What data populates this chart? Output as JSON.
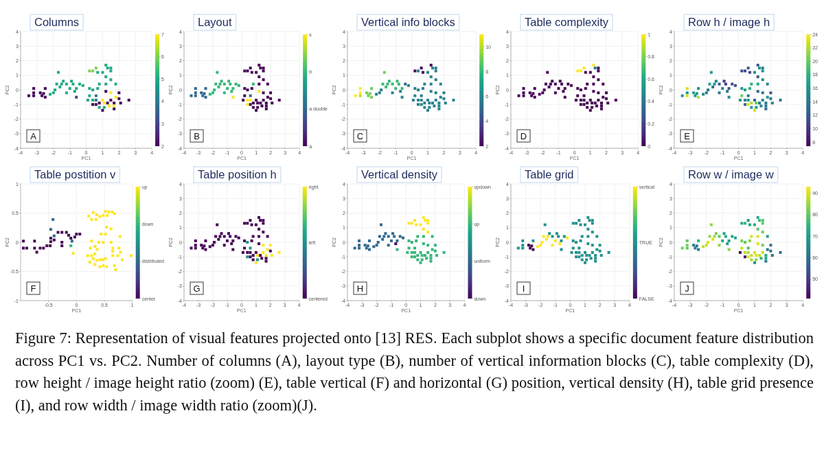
{
  "chart_data": [
    {
      "type": "scatter",
      "title": "Columns",
      "xlabel": "PC1",
      "ylabel": "PC2",
      "x": [
        -3.5,
        -3.2,
        -3.2,
        -3.2,
        -2.8,
        -2.7,
        -2.5,
        -2.5,
        -2.6,
        -2.2,
        -2.0,
        -1.9,
        -1.8,
        -1.7,
        -1.6,
        -1.5,
        -1.4,
        -1.2,
        -1.2,
        -1.0,
        -0.9,
        -0.8,
        -0.6,
        -0.6,
        -0.4,
        -0.2,
        -0.7,
        0.2,
        0.4,
        0.6,
        0.7,
        1.0,
        1.2,
        1.3,
        1.5,
        1.5,
        1.2,
        1.5,
        0.8,
        1.2,
        1.8,
        0.2,
        0.4,
        0.7,
        1.2,
        1.5,
        2.0,
        0.2,
        0.6,
        2.0,
        1.8,
        0.1,
        0.4,
        0.6,
        1.0,
        1.5,
        2.6,
        0.4,
        0.6,
        0.8,
        1.1,
        1.3,
        1.7,
        2.1,
        0.8,
        1.1,
        1.4,
        1.0,
        1.7,
        1.7
      ],
      "values": [
        -0.4,
        0.1,
        -0.2,
        -0.4,
        -0.2,
        -0.4,
        0.1,
        -0.5,
        -0.25,
        -0.3,
        -0.2,
        0.0,
        0.4,
        1.2,
        0.2,
        0.4,
        0.6,
        0.4,
        -0.2,
        0.1,
        0.6,
        0.4,
        0.1,
        -0.5,
        0.4,
        0.3,
        -0.1,
        1.3,
        1.3,
        1.5,
        1.2,
        1.2,
        1.7,
        1.5,
        1.5,
        1.3,
        0.9,
        0.7,
        0.4,
        0.4,
        0.4,
        0.1,
        0.0,
        0.1,
        -0.1,
        -0.2,
        -0.2,
        -0.4,
        -0.4,
        -0.6,
        -0.5,
        -0.7,
        -0.7,
        -0.7,
        -0.7,
        -0.7,
        -0.7,
        -1.0,
        -1.0,
        -0.9,
        -0.9,
        -0.9,
        -0.9,
        -0.9,
        -1.2,
        -1.2,
        -1.1,
        -1.4,
        -1.3,
        -1.1
      ],
      "cvalues": [
        2,
        2,
        2,
        2,
        2,
        2,
        2,
        2,
        2,
        5,
        5,
        5,
        5,
        5,
        5,
        5,
        5,
        5,
        5,
        5,
        5,
        5,
        5,
        3,
        5,
        5,
        5,
        6,
        6,
        6,
        5,
        5,
        5,
        5,
        5,
        5,
        5,
        5,
        5,
        5,
        5,
        5,
        5,
        5,
        2,
        7,
        2,
        5,
        4,
        2,
        7,
        5,
        5,
        4,
        7,
        2,
        2,
        2,
        2,
        2,
        7,
        2,
        2,
        2,
        5,
        5,
        7,
        2,
        2,
        7
      ],
      "clim": [
        2,
        7
      ],
      "cticks": [
        2,
        3,
        4,
        5,
        6,
        7
      ],
      "xlim": [
        -4,
        4
      ],
      "ylim": [
        -4,
        4
      ],
      "xticks": [
        -4,
        -3,
        -2,
        -1,
        0,
        1,
        2,
        3,
        4
      ],
      "yticks": [
        -4,
        -3,
        -2,
        -1,
        0,
        1,
        2,
        3,
        4
      ],
      "grid": true,
      "marker": "square",
      "annotations": [
        "A"
      ]
    },
    {
      "type": "scatter",
      "title": "Layout",
      "xlabel": "PC1",
      "ylabel": "PC2",
      "x": [
        -3.5,
        -3.2,
        -3.2,
        -3.2,
        -2.8,
        -2.7,
        -2.5,
        -2.5,
        -2.6,
        -2.2,
        -2.0,
        -1.9,
        -1.8,
        -1.7,
        -1.6,
        -1.5,
        -1.4,
        -1.2,
        -1.2,
        -1.0,
        -0.9,
        -0.8,
        -0.6,
        -0.6,
        -0.4,
        -0.2,
        -0.7,
        0.2,
        0.4,
        0.6,
        0.7,
        1.0,
        1.2,
        1.3,
        1.5,
        1.5,
        1.2,
        1.5,
        0.8,
        1.2,
        1.8,
        0.2,
        0.4,
        0.7,
        1.2,
        1.5,
        2.0,
        0.2,
        0.6,
        2.0,
        1.8,
        0.1,
        0.4,
        0.6,
        1.0,
        1.5,
        2.6,
        0.4,
        0.6,
        0.8,
        1.1,
        1.3,
        1.7,
        2.1,
        0.8,
        1.1,
        1.4,
        1.0,
        1.7,
        1.7
      ],
      "values": [
        -0.4,
        0.1,
        -0.2,
        -0.4,
        -0.2,
        -0.4,
        0.1,
        -0.5,
        -0.25,
        -0.3,
        -0.2,
        0.0,
        0.4,
        1.2,
        0.2,
        0.4,
        0.6,
        0.4,
        -0.2,
        0.1,
        0.6,
        0.4,
        0.1,
        -0.5,
        0.4,
        0.3,
        -0.1,
        1.3,
        1.3,
        1.5,
        1.2,
        1.2,
        1.7,
        1.5,
        1.5,
        1.3,
        0.9,
        0.7,
        0.4,
        0.4,
        0.4,
        0.1,
        0.0,
        0.1,
        -0.1,
        -0.2,
        -0.2,
        -0.4,
        -0.4,
        -0.6,
        -0.5,
        -0.7,
        -0.7,
        -0.7,
        -0.7,
        -0.7,
        -0.7,
        -1.0,
        -1.0,
        -0.9,
        -0.9,
        -0.9,
        -0.9,
        -0.9,
        -1.2,
        -1.2,
        -1.1,
        -1.4,
        -1.3,
        -1.1
      ],
      "cvalues": [
        1,
        1,
        1,
        1,
        1,
        1,
        1,
        1,
        1,
        2,
        2,
        2,
        2,
        2,
        2,
        2,
        2,
        2,
        2,
        2,
        2,
        2,
        2,
        3,
        2,
        2,
        2,
        0,
        0,
        0,
        0,
        0,
        0,
        0,
        0,
        0,
        0,
        0,
        2,
        0,
        0,
        0,
        0,
        0,
        3,
        0,
        0,
        0,
        1,
        0,
        0,
        0,
        3,
        3,
        0,
        0,
        0,
        3,
        0,
        0,
        0,
        0,
        0,
        0,
        0,
        0,
        0,
        0,
        0,
        0
      ],
      "clim": [
        0,
        3
      ],
      "cticks": [
        {
          "value": 0,
          "label": "a"
        },
        {
          "value": 1,
          "label": "a double"
        },
        {
          "value": 2,
          "label": "b"
        },
        {
          "value": 3,
          "label": "s"
        }
      ],
      "xlim": [
        -4,
        4
      ],
      "ylim": [
        -4,
        4
      ],
      "xticks": [
        -4,
        -3,
        -2,
        -1,
        0,
        1,
        2,
        3,
        4
      ],
      "yticks": [
        -4,
        -3,
        -2,
        -1,
        0,
        1,
        2,
        3,
        4
      ],
      "grid": true,
      "marker": "square",
      "annotations": [
        "B"
      ]
    },
    {
      "type": "scatter",
      "title": "Vertical info blocks",
      "xlabel": "PC1",
      "ylabel": "PC2",
      "x": [
        -3.5,
        -3.2,
        -3.2,
        -3.2,
        -2.8,
        -2.7,
        -2.5,
        -2.5,
        -2.6,
        -2.2,
        -2.0,
        -1.9,
        -1.8,
        -1.7,
        -1.6,
        -1.5,
        -1.4,
        -1.2,
        -1.2,
        -1.0,
        -0.9,
        -0.8,
        -0.6,
        -0.6,
        -0.4,
        -0.2,
        -0.7,
        0.2,
        0.4,
        0.6,
        0.7,
        1.0,
        1.2,
        1.3,
        1.5,
        1.5,
        1.2,
        1.5,
        0.8,
        1.2,
        1.8,
        0.2,
        0.4,
        0.7,
        1.2,
        1.5,
        2.0,
        0.2,
        0.6,
        2.0,
        1.8,
        0.1,
        0.4,
        0.6,
        1.0,
        1.5,
        2.6,
        0.4,
        0.6,
        0.8,
        1.1,
        1.3,
        1.7,
        2.1,
        0.8,
        1.1,
        1.4,
        1.0,
        1.7,
        1.7
      ],
      "values": [
        -0.4,
        0.1,
        -0.2,
        -0.4,
        -0.2,
        -0.4,
        0.1,
        -0.5,
        -0.25,
        -0.3,
        -0.2,
        0.0,
        0.4,
        1.2,
        0.2,
        0.4,
        0.6,
        0.4,
        -0.2,
        0.1,
        0.6,
        0.4,
        0.1,
        -0.5,
        0.4,
        0.3,
        -0.1,
        1.3,
        1.3,
        1.5,
        1.2,
        1.2,
        1.7,
        1.5,
        1.5,
        1.3,
        0.9,
        0.7,
        0.4,
        0.4,
        0.4,
        0.1,
        0.0,
        0.1,
        -0.1,
        -0.2,
        -0.2,
        -0.4,
        -0.4,
        -0.6,
        -0.5,
        -0.7,
        -0.7,
        -0.7,
        -0.7,
        -0.7,
        -0.7,
        -1.0,
        -1.0,
        -0.9,
        -0.9,
        -0.9,
        -0.9,
        -0.9,
        -1.2,
        -1.2,
        -1.1,
        -1.4,
        -1.3,
        -1.1
      ],
      "cvalues": [
        11,
        11,
        11,
        10,
        9,
        9,
        9,
        9,
        9,
        6,
        6,
        6,
        8,
        9,
        8,
        8,
        8,
        8,
        6,
        8,
        8,
        8,
        8,
        6,
        5,
        6,
        6,
        2,
        6,
        2,
        2,
        6,
        2,
        6,
        6,
        6,
        6,
        6,
        6,
        6,
        6,
        6,
        6,
        6,
        6,
        6,
        6,
        6,
        6,
        6,
        6,
        6,
        6,
        6,
        6,
        6,
        6,
        6,
        6,
        6,
        6,
        6,
        6,
        6,
        6,
        6,
        6,
        6,
        6,
        6
      ],
      "clim": [
        2,
        11
      ],
      "cticks": [
        2,
        4,
        6,
        8,
        10
      ],
      "xlim": [
        -4,
        4
      ],
      "ylim": [
        -4,
        4
      ],
      "xticks": [
        -4,
        -3,
        -2,
        -1,
        0,
        1,
        2,
        3,
        4
      ],
      "yticks": [
        -4,
        -3,
        -2,
        -1,
        0,
        1,
        2,
        3,
        4
      ],
      "grid": true,
      "marker": "square",
      "annotations": [
        "C"
      ]
    },
    {
      "type": "scatter",
      "title": "Table complexity",
      "xlabel": "PC1",
      "ylabel": "PC2",
      "x": [
        -3.5,
        -3.2,
        -3.2,
        -3.2,
        -2.8,
        -2.7,
        -2.5,
        -2.5,
        -2.6,
        -2.2,
        -2.0,
        -1.9,
        -1.8,
        -1.7,
        -1.6,
        -1.5,
        -1.4,
        -1.2,
        -1.2,
        -1.0,
        -0.9,
        -0.8,
        -0.6,
        -0.6,
        -0.4,
        -0.2,
        -0.7,
        0.2,
        0.4,
        0.6,
        0.7,
        1.0,
        1.2,
        1.3,
        1.5,
        1.5,
        1.2,
        1.5,
        0.8,
        1.2,
        1.8,
        0.2,
        0.4,
        0.7,
        1.2,
        1.5,
        2.0,
        0.2,
        0.6,
        2.0,
        1.8,
        0.1,
        0.4,
        0.6,
        1.0,
        1.5,
        2.6,
        0.4,
        0.6,
        0.8,
        1.1,
        1.3,
        1.7,
        2.1,
        0.8,
        1.1,
        1.4,
        1.0,
        1.7,
        1.7
      ],
      "values": [
        -0.4,
        0.1,
        -0.2,
        -0.4,
        -0.2,
        -0.4,
        0.1,
        -0.5,
        -0.25,
        -0.3,
        -0.2,
        0.0,
        0.4,
        1.2,
        0.2,
        0.4,
        0.6,
        0.4,
        -0.2,
        0.1,
        0.6,
        0.4,
        0.1,
        -0.5,
        0.4,
        0.3,
        -0.1,
        1.3,
        1.3,
        1.5,
        1.2,
        1.2,
        1.7,
        1.5,
        1.5,
        1.3,
        0.9,
        0.7,
        0.4,
        0.4,
        0.4,
        0.1,
        0.0,
        0.1,
        -0.1,
        -0.2,
        -0.2,
        -0.4,
        -0.4,
        -0.6,
        -0.5,
        -0.7,
        -0.7,
        -0.7,
        -0.7,
        -0.7,
        -0.7,
        -1.0,
        -1.0,
        -0.9,
        -0.9,
        -0.9,
        -0.9,
        -0.9,
        -1.2,
        -1.2,
        -1.1,
        -1.4,
        -1.3,
        -1.1
      ],
      "cvalues": [
        0,
        0,
        0,
        0,
        0,
        0,
        0,
        0,
        0,
        0,
        0,
        0,
        0,
        0,
        0,
        0,
        0,
        0,
        0,
        0,
        0,
        0,
        0,
        0,
        0,
        0,
        0,
        1,
        1,
        1,
        0,
        0,
        1,
        0.4,
        0,
        0,
        0,
        0,
        0,
        0,
        0,
        0,
        0,
        0,
        0,
        0,
        0,
        0,
        0,
        0,
        0,
        0,
        0,
        0,
        0,
        0,
        0,
        0,
        0,
        0,
        0,
        0,
        0,
        0,
        0,
        0,
        0,
        0,
        0,
        0
      ],
      "clim": [
        0,
        1
      ],
      "cticks": [
        0,
        0.2,
        0.4,
        0.6,
        0.8,
        1
      ],
      "xlim": [
        -4,
        4
      ],
      "ylim": [
        -4,
        4
      ],
      "xticks": [
        -4,
        -3,
        -2,
        -1,
        0,
        1,
        2,
        3,
        4
      ],
      "yticks": [
        -4,
        -3,
        -2,
        -1,
        0,
        1,
        2,
        3,
        4
      ],
      "grid": true,
      "marker": "square",
      "annotations": [
        "D"
      ]
    },
    {
      "type": "scatter",
      "title": "Row h / image h",
      "xlabel": "PC1",
      "ylabel": "PC2",
      "x": [
        -3.5,
        -3.2,
        -3.2,
        -3.2,
        -2.8,
        -2.7,
        -2.5,
        -2.5,
        -2.6,
        -2.2,
        -2.0,
        -1.9,
        -1.8,
        -1.7,
        -1.6,
        -1.5,
        -1.4,
        -1.2,
        -1.2,
        -1.0,
        -0.9,
        -0.8,
        -0.6,
        -0.6,
        -0.4,
        -0.2,
        -0.7,
        0.2,
        0.4,
        0.6,
        0.7,
        1.0,
        1.2,
        1.3,
        1.5,
        1.5,
        1.2,
        1.5,
        0.8,
        1.2,
        1.8,
        0.2,
        0.4,
        0.7,
        1.2,
        1.5,
        2.0,
        0.2,
        0.6,
        2.0,
        1.8,
        0.1,
        0.4,
        0.6,
        1.0,
        1.5,
        2.6,
        0.4,
        0.6,
        0.8,
        1.1,
        1.3,
        1.7,
        2.1,
        0.8,
        1.1,
        1.4,
        1.0,
        1.7,
        1.7
      ],
      "values": [
        -0.4,
        0.1,
        -0.2,
        -0.4,
        -0.2,
        -0.4,
        0.1,
        -0.5,
        -0.25,
        -0.3,
        -0.2,
        0.0,
        0.4,
        1.2,
        0.2,
        0.4,
        0.6,
        0.4,
        -0.2,
        0.1,
        0.6,
        0.4,
        0.1,
        -0.5,
        0.4,
        0.3,
        -0.1,
        1.3,
        1.3,
        1.5,
        1.2,
        1.2,
        1.7,
        1.5,
        1.5,
        1.3,
        0.9,
        0.7,
        0.4,
        0.4,
        0.4,
        0.1,
        0.0,
        0.1,
        -0.1,
        -0.2,
        -0.2,
        -0.4,
        -0.4,
        -0.6,
        -0.5,
        -0.7,
        -0.7,
        -0.7,
        -0.7,
        -0.7,
        -0.7,
        -1.0,
        -1.0,
        -0.9,
        -0.9,
        -0.9,
        -0.9,
        -0.9,
        -1.2,
        -1.2,
        -1.1,
        -1.4,
        -1.3,
        -1.1
      ],
      "cvalues": [
        16,
        23,
        16,
        23,
        17,
        16,
        16,
        22,
        16,
        15,
        14,
        14,
        17,
        16,
        13,
        16,
        15,
        12,
        14,
        15,
        10,
        10,
        12,
        15,
        11,
        11,
        14,
        11,
        11,
        12,
        11,
        16,
        12,
        16,
        15,
        16,
        12,
        16,
        18,
        17,
        15,
        16,
        17,
        18,
        13,
        14,
        12,
        20,
        14,
        14,
        16,
        16,
        15,
        16,
        13,
        15,
        14,
        13,
        23,
        22,
        20,
        14,
        14,
        15,
        16,
        16,
        15,
        23,
        13,
        14
      ],
      "clim": [
        7.4,
        24
      ],
      "cticks": [
        8,
        10,
        12,
        14,
        16,
        18,
        20,
        22,
        24
      ],
      "xlim": [
        -4,
        4
      ],
      "ylim": [
        -4,
        4
      ],
      "xticks": [
        -4,
        -3,
        -2,
        -1,
        0,
        1,
        2,
        3,
        4
      ],
      "yticks": [
        -4,
        -3,
        -2,
        -1,
        0,
        1,
        2,
        3,
        4
      ],
      "grid": true,
      "marker": "square",
      "annotations": [
        "E"
      ]
    },
    {
      "type": "scatter",
      "title": "Table postition v",
      "xlabel": "PC1",
      "ylabel": "PC2",
      "x": [
        -0.95,
        -0.95,
        -0.89,
        -0.75,
        -0.75,
        -0.71,
        -0.65,
        -0.59,
        -0.53,
        -0.47,
        -0.46,
        -0.46,
        -0.4,
        -0.33,
        -0.26,
        -0.26,
        -0.26,
        -0.18,
        -0.14,
        -0.1,
        -0.03,
        0.0,
        0.06,
        -0.42,
        -0.46,
        -0.4,
        -0.08,
        -0.1,
        -0.06,
        0.3,
        0.36,
        0.22,
        0.27,
        0.35,
        0.42,
        0.48,
        0.52,
        0.58,
        0.64,
        0.68,
        0.55,
        0.54,
        0.62,
        0.52,
        0.44,
        0.78,
        0.27,
        0.4,
        0.48,
        0.62,
        0.25,
        0.33,
        0.37,
        0.65,
        0.76,
        0.2,
        0.27,
        0.33,
        0.3,
        0.36,
        0.42,
        0.47,
        0.52,
        0.65,
        0.65,
        0.74,
        0.79,
        0.82,
        0.33,
        0.42,
        0.48,
        0.54,
        0.68,
        0.7,
        0.98,
        0.24
      ],
      "values": [
        0.02,
        -0.1,
        -0.1,
        0.02,
        -0.1,
        -0.17,
        -0.1,
        -0.1,
        -0.06,
        -0.06,
        0.01,
        0.07,
        0.04,
        0.17,
        0.17,
        0.0,
        -0.06,
        0.17,
        0.12,
        0.07,
        0.09,
        0.14,
        0.14,
        0.39,
        0.22,
        0.11,
        0.02,
        -0.06,
        -0.19,
        0.51,
        0.47,
        0.45,
        0.39,
        0.39,
        0.44,
        0.46,
        0.53,
        0.52,
        0.52,
        0.49,
        0.46,
        0.26,
        0.23,
        0.14,
        0.14,
        0.1,
        0.02,
        0.0,
        0.0,
        0.0,
        -0.1,
        -0.07,
        -0.12,
        -0.1,
        -0.1,
        -0.23,
        -0.23,
        -0.2,
        -0.28,
        -0.31,
        -0.3,
        -0.3,
        -0.28,
        -0.15,
        -0.23,
        -0.23,
        -0.17,
        -0.3,
        -0.38,
        -0.42,
        -0.4,
        -0.42,
        -0.4,
        -0.47,
        -0.23,
        -0.34
      ],
      "cvalues": [
        0,
        0,
        0,
        0,
        0,
        0,
        0,
        0,
        0,
        0,
        0,
        0,
        0,
        0,
        0,
        0,
        0,
        0,
        0,
        0,
        0,
        0,
        0,
        1,
        1,
        1,
        1,
        2,
        3,
        3,
        3,
        3,
        3,
        3,
        3,
        3,
        3,
        3,
        3,
        3,
        3,
        3,
        3,
        3,
        3,
        3,
        3,
        3,
        3,
        3,
        3,
        3,
        3,
        3,
        3,
        3,
        3,
        3,
        3,
        3,
        3,
        3,
        3,
        3,
        3,
        3,
        3,
        3,
        3,
        3,
        3,
        3,
        3,
        3,
        3,
        3
      ],
      "clim": [
        0,
        3
      ],
      "cticks": [
        {
          "value": 0,
          "label": "center"
        },
        {
          "value": 1,
          "label": "distributed"
        },
        {
          "value": 2,
          "label": "down"
        },
        {
          "value": 3,
          "label": "up"
        }
      ],
      "xlim": [
        -1,
        1
      ],
      "ylim": [
        -1,
        1
      ],
      "xticks": [
        -0.5,
        0,
        0.5,
        1
      ],
      "yticks": [
        -1,
        -0.5,
        0,
        0.5,
        1
      ],
      "grid": true,
      "marker": "square",
      "annotations": [
        "F"
      ]
    },
    {
      "type": "scatter",
      "title": "Table position h",
      "xlabel": "PC1",
      "ylabel": "PC2",
      "x": [
        -3.5,
        -3.2,
        -3.2,
        -3.2,
        -2.8,
        -2.7,
        -2.5,
        -2.5,
        -2.6,
        -2.2,
        -2.0,
        -1.9,
        -1.8,
        -1.7,
        -1.6,
        -1.5,
        -1.4,
        -1.2,
        -1.2,
        -1.0,
        -0.9,
        -0.8,
        -0.6,
        -0.6,
        -0.4,
        -0.2,
        -0.7,
        0.2,
        0.4,
        0.6,
        0.7,
        1.0,
        1.2,
        1.3,
        1.5,
        1.5,
        1.2,
        1.5,
        0.8,
        1.2,
        1.8,
        0.2,
        0.4,
        0.7,
        1.2,
        1.5,
        2.0,
        0.2,
        0.6,
        2.0,
        1.8,
        0.1,
        0.4,
        0.6,
        1.0,
        1.5,
        2.6,
        0.4,
        0.6,
        0.8,
        1.1,
        1.3,
        1.7,
        2.1,
        0.8,
        1.1,
        1.4,
        1.0,
        1.7,
        1.7
      ],
      "values": [
        -0.4,
        0.1,
        -0.2,
        -0.4,
        -0.2,
        -0.4,
        0.1,
        -0.5,
        -0.25,
        -0.3,
        -0.2,
        0.0,
        0.4,
        1.2,
        0.2,
        0.4,
        0.6,
        0.4,
        -0.2,
        0.1,
        0.6,
        0.4,
        0.1,
        -0.5,
        0.4,
        0.3,
        -0.1,
        1.3,
        1.3,
        1.5,
        1.2,
        1.2,
        1.7,
        1.5,
        1.5,
        1.3,
        0.9,
        0.7,
        0.4,
        0.4,
        0.4,
        0.1,
        0.0,
        0.1,
        -0.1,
        -0.2,
        -0.2,
        -0.4,
        -0.4,
        -0.6,
        -0.5,
        -0.7,
        -0.7,
        -0.7,
        -0.7,
        -0.7,
        -0.7,
        -1.0,
        -1.0,
        -0.9,
        -0.9,
        -0.9,
        -0.9,
        -0.9,
        -1.2,
        -1.2,
        -1.1,
        -1.4,
        -1.3,
        -1.1
      ],
      "cvalues": [
        0,
        0,
        0,
        0,
        0,
        0,
        0,
        0,
        0,
        0,
        0,
        0,
        0,
        0,
        0,
        0,
        0,
        0,
        0,
        0,
        0,
        0,
        0,
        0,
        0,
        0,
        0,
        0,
        0,
        0,
        0,
        0,
        0,
        0,
        0,
        0,
        0,
        0,
        0,
        0,
        0,
        0,
        1,
        0,
        0,
        2,
        2,
        0,
        1,
        0,
        2,
        0,
        0,
        0,
        0,
        2,
        2,
        1,
        0,
        0,
        2,
        0,
        2,
        2,
        0,
        1,
        0,
        2,
        0,
        0
      ],
      "clim": [
        0,
        2
      ],
      "cticks": [
        {
          "value": 0,
          "label": "centered"
        },
        {
          "value": 1,
          "label": "left"
        },
        {
          "value": 2,
          "label": "right"
        }
      ],
      "xlim": [
        -4,
        4
      ],
      "ylim": [
        -4,
        4
      ],
      "xticks": [
        -4,
        -3,
        -2,
        -1,
        0,
        1,
        2,
        3,
        4
      ],
      "yticks": [
        -4,
        -3,
        -2,
        -1,
        0,
        1,
        2,
        3,
        4
      ],
      "grid": true,
      "marker": "square",
      "annotations": [
        "G"
      ]
    },
    {
      "type": "scatter",
      "title": "Vertical density",
      "xlabel": "PC1",
      "ylabel": "PC2",
      "x": [
        -3.5,
        -3.2,
        -3.2,
        -3.2,
        -2.8,
        -2.7,
        -2.5,
        -2.5,
        -2.6,
        -2.2,
        -2.0,
        -1.9,
        -1.8,
        -1.7,
        -1.6,
        -1.5,
        -1.4,
        -1.2,
        -1.2,
        -1.0,
        -0.9,
        -0.8,
        -0.6,
        -0.6,
        -0.4,
        -0.2,
        -0.7,
        0.2,
        0.4,
        0.6,
        0.7,
        1.0,
        1.2,
        1.3,
        1.5,
        1.5,
        1.2,
        1.5,
        0.8,
        1.2,
        1.8,
        0.2,
        0.4,
        0.7,
        1.2,
        1.5,
        2.0,
        0.2,
        0.6,
        2.0,
        1.8,
        0.1,
        0.4,
        0.6,
        1.0,
        1.5,
        2.6,
        0.4,
        0.6,
        0.8,
        1.1,
        1.3,
        1.7,
        2.1,
        0.8,
        1.1,
        1.4,
        1.0,
        1.7,
        1.7
      ],
      "values": [
        -0.4,
        0.1,
        -0.2,
        -0.4,
        -0.2,
        -0.4,
        0.1,
        -0.5,
        -0.25,
        -0.3,
        -0.2,
        0.0,
        0.4,
        1.2,
        0.2,
        0.4,
        0.6,
        0.4,
        -0.2,
        0.1,
        0.6,
        0.4,
        0.1,
        -0.5,
        0.4,
        0.3,
        -0.1,
        1.3,
        1.3,
        1.5,
        1.2,
        1.2,
        1.7,
        1.5,
        1.5,
        1.3,
        0.9,
        0.7,
        0.4,
        0.4,
        0.4,
        0.1,
        0.0,
        0.1,
        -0.1,
        -0.2,
        -0.2,
        -0.4,
        -0.4,
        -0.6,
        -0.5,
        -0.7,
        -0.7,
        -0.7,
        -0.7,
        -0.7,
        -0.7,
        -1.0,
        -1.0,
        -0.9,
        -0.9,
        -0.9,
        -0.9,
        -0.9,
        -1.2,
        -1.2,
        -1.1,
        -1.4,
        -1.3,
        -1.1
      ],
      "cvalues": [
        1,
        1,
        1,
        1,
        1,
        1,
        1,
        1,
        1,
        1,
        1,
        1,
        1,
        1,
        1,
        1,
        1,
        1,
        1,
        1,
        1,
        1,
        1,
        2,
        1,
        1,
        0,
        3,
        3,
        3,
        3,
        3,
        3,
        3,
        3,
        3,
        3,
        3,
        2,
        2,
        2,
        2,
        2,
        2,
        2,
        2,
        2,
        2,
        2,
        2,
        2,
        2,
        2,
        2,
        2,
        2,
        2,
        2,
        2,
        2,
        2,
        2,
        2,
        2,
        2,
        2,
        2,
        2,
        2,
        2
      ],
      "clim": [
        0,
        3
      ],
      "cticks": [
        {
          "value": 0,
          "label": "down"
        },
        {
          "value": 1,
          "label": "uniform"
        },
        {
          "value": 2,
          "label": "up"
        },
        {
          "value": 3,
          "label": "updown"
        }
      ],
      "xlim": [
        -4,
        4
      ],
      "ylim": [
        -4,
        4
      ],
      "xticks": [
        -4,
        -3,
        -2,
        -1,
        0,
        1,
        2,
        3,
        4
      ],
      "yticks": [
        -4,
        -3,
        -2,
        -1,
        0,
        1,
        2,
        3,
        4
      ],
      "grid": true,
      "marker": "square",
      "annotations": [
        "H"
      ]
    },
    {
      "type": "scatter",
      "title": "Table grid",
      "xlabel": "PC1",
      "ylabel": "PC2",
      "x": [
        -3.5,
        -3.2,
        -3.2,
        -3.2,
        -2.8,
        -2.7,
        -2.5,
        -2.5,
        -2.6,
        -2.2,
        -2.0,
        -1.9,
        -1.8,
        -1.7,
        -1.6,
        -1.5,
        -1.4,
        -1.2,
        -1.2,
        -1.0,
        -0.9,
        -0.8,
        -0.6,
        -0.6,
        -0.4,
        -0.2,
        -0.7,
        0.2,
        0.4,
        0.6,
        0.7,
        1.0,
        1.2,
        1.3,
        1.5,
        1.5,
        1.2,
        1.5,
        0.8,
        1.2,
        1.8,
        0.2,
        0.4,
        0.7,
        1.2,
        1.5,
        2.0,
        0.2,
        0.6,
        2.0,
        1.8,
        0.1,
        0.4,
        0.6,
        1.0,
        1.5,
        2.6,
        0.4,
        0.6,
        0.8,
        1.1,
        1.3,
        1.7,
        2.1,
        0.8,
        1.1,
        1.4,
        1.0,
        1.7,
        1.7
      ],
      "values": [
        -0.4,
        0.1,
        -0.2,
        -0.4,
        -0.2,
        -0.4,
        0.1,
        -0.5,
        -0.25,
        -0.3,
        -0.2,
        0.0,
        0.4,
        1.2,
        0.2,
        0.4,
        0.6,
        0.4,
        -0.2,
        0.1,
        0.6,
        0.4,
        0.1,
        -0.5,
        0.4,
        0.3,
        -0.1,
        1.3,
        1.3,
        1.5,
        1.2,
        1.2,
        1.7,
        1.5,
        1.5,
        1.3,
        0.9,
        0.7,
        0.4,
        0.4,
        0.4,
        0.1,
        0.0,
        0.1,
        -0.1,
        -0.2,
        -0.2,
        -0.4,
        -0.4,
        -0.6,
        -0.5,
        -0.7,
        -0.7,
        -0.7,
        -0.7,
        -0.7,
        -0.7,
        -1.0,
        -1.0,
        -0.9,
        -0.9,
        -0.9,
        -0.9,
        -0.9,
        -1.2,
        -1.2,
        -1.1,
        -1.4,
        -1.3,
        -1.1
      ],
      "cvalues": [
        1,
        1,
        1,
        1,
        0,
        0,
        1,
        0,
        0,
        2,
        2,
        2,
        2,
        1,
        2,
        2,
        1,
        1,
        2,
        2,
        1,
        1,
        1,
        1,
        1,
        2,
        2,
        1,
        1,
        1,
        1,
        1,
        1,
        1,
        1,
        1,
        1,
        1,
        1,
        1,
        1,
        1,
        1,
        1,
        1,
        1,
        1,
        1,
        1,
        1,
        1,
        1,
        1,
        1,
        1,
        1,
        1,
        1,
        1,
        1,
        1,
        1,
        1,
        1,
        1,
        1,
        1,
        1,
        1,
        1
      ],
      "clim": [
        0,
        2
      ],
      "cticks": [
        {
          "value": 0,
          "label": "FALSE"
        },
        {
          "value": 1,
          "label": "TRUE"
        },
        {
          "value": 2,
          "label": "vertical"
        }
      ],
      "xlim": [
        -4,
        4
      ],
      "ylim": [
        -4,
        4
      ],
      "xticks": [
        -4,
        -3,
        -2,
        -1,
        0,
        1,
        2,
        3,
        4
      ],
      "yticks": [
        -4,
        -3,
        -2,
        -1,
        0,
        1,
        2,
        3,
        4
      ],
      "grid": true,
      "marker": "square",
      "annotations": [
        "I"
      ]
    },
    {
      "type": "scatter",
      "title": "Row w / image w",
      "xlabel": "PC1",
      "ylabel": "PC2",
      "x": [
        -3.5,
        -3.2,
        -3.2,
        -3.2,
        -2.8,
        -2.7,
        -2.5,
        -2.5,
        -2.6,
        -2.2,
        -2.0,
        -1.9,
        -1.8,
        -1.7,
        -1.6,
        -1.5,
        -1.4,
        -1.2,
        -1.2,
        -1.0,
        -0.9,
        -0.8,
        -0.6,
        -0.6,
        -0.4,
        -0.2,
        -0.7,
        0.2,
        0.4,
        0.6,
        0.7,
        1.0,
        1.2,
        1.3,
        1.5,
        1.5,
        1.2,
        1.5,
        0.8,
        1.2,
        1.8,
        0.2,
        0.4,
        0.7,
        1.2,
        1.5,
        2.0,
        0.2,
        0.6,
        2.0,
        1.8,
        0.1,
        0.4,
        0.6,
        1.0,
        1.5,
        2.6,
        0.4,
        0.6,
        0.8,
        1.1,
        1.3,
        1.7,
        2.1,
        0.8,
        1.1,
        1.4,
        1.0,
        1.7,
        1.7
      ],
      "values": [
        -0.4,
        0.1,
        -0.2,
        -0.4,
        -0.2,
        -0.4,
        0.1,
        -0.5,
        -0.25,
        -0.3,
        -0.2,
        0.0,
        0.4,
        1.2,
        0.2,
        0.4,
        0.6,
        0.4,
        -0.2,
        0.1,
        0.6,
        0.4,
        0.1,
        -0.5,
        0.4,
        0.3,
        -0.1,
        1.3,
        1.3,
        1.5,
        1.2,
        1.2,
        1.7,
        1.5,
        1.5,
        1.3,
        0.9,
        0.7,
        0.4,
        0.4,
        0.4,
        0.1,
        0.0,
        0.1,
        -0.1,
        -0.2,
        -0.2,
        -0.4,
        -0.4,
        -0.6,
        -0.5,
        -0.7,
        -0.7,
        -0.7,
        -0.7,
        -0.7,
        -0.7,
        -1.0,
        -1.0,
        -0.9,
        -0.9,
        -0.9,
        -0.9,
        -0.9,
        -1.2,
        -1.2,
        -1.1,
        -1.4,
        -1.3,
        -1.1
      ],
      "cvalues": [
        82,
        80,
        82,
        80,
        62,
        62,
        75,
        62,
        60,
        88,
        88,
        90,
        84,
        84,
        90,
        86,
        82,
        80,
        84,
        72,
        72,
        72,
        70,
        84,
        72,
        70,
        70,
        72,
        75,
        70,
        72,
        74,
        72,
        76,
        78,
        80,
        80,
        82,
        90,
        90,
        70,
        82,
        80,
        84,
        90,
        82,
        60,
        88,
        78,
        60,
        62,
        42,
        88,
        86,
        90,
        88,
        60,
        44,
        90,
        88,
        90,
        88,
        72,
        60,
        86,
        84,
        74,
        68,
        62,
        72
      ],
      "clim": [
        41,
        93
      ],
      "cticks": [
        50,
        60,
        70,
        80,
        90
      ],
      "xlim": [
        -4,
        4
      ],
      "ylim": [
        -4,
        4
      ],
      "xticks": [
        -4,
        -3,
        -2,
        -1,
        0,
        1,
        2,
        3,
        4
      ],
      "yticks": [
        -4,
        -3,
        -2,
        -1,
        0,
        1,
        2,
        3,
        4
      ],
      "grid": true,
      "marker": "square",
      "annotations": [
        "J",
        "Figure 7: Representation of visual features projected onto [13] RES. Each subplot shows a specific document feature distribution across PC1 vs. PC2. Number of columns (A), layout type (B), number of vertical information blocks (C), table complexity (D), row height / image height ratio (zoom) (E), table vertical (F) and horizontal (G) position, vertical density (H), table grid presence (I), and row width / image width ratio (zoom)(J)."
      ]
    }
  ]
}
